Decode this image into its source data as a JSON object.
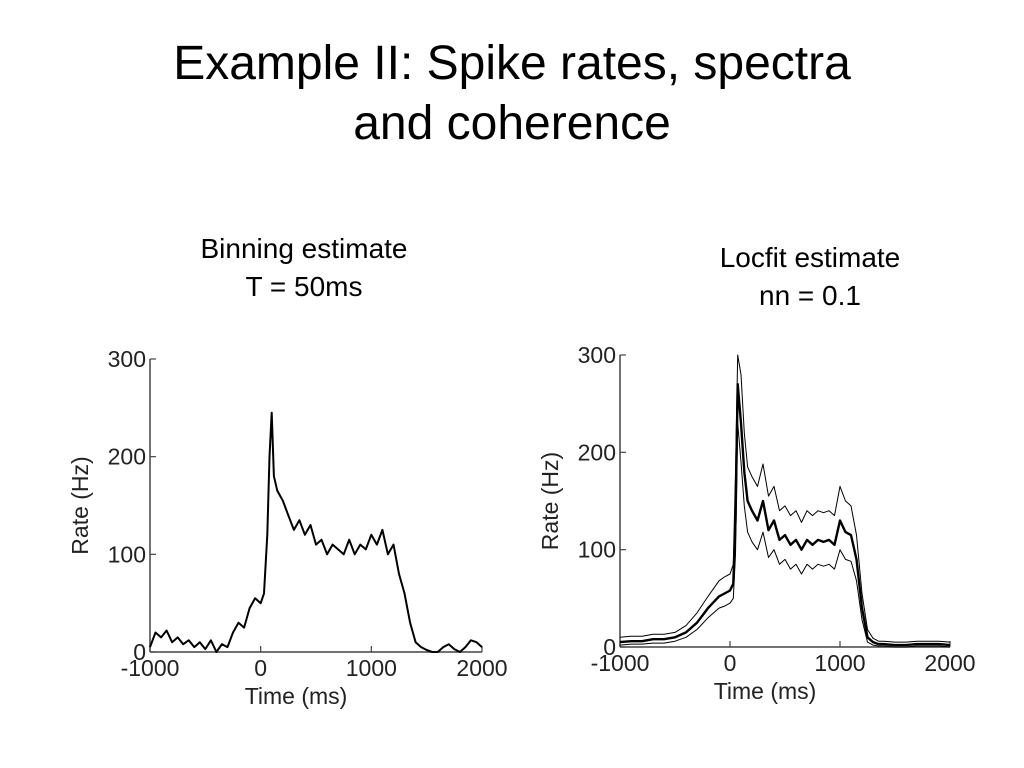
{
  "slide": {
    "title_line1": "Example II:  Spike rates, spectra",
    "title_line2": "and coherence"
  },
  "panels": {
    "left": {
      "title_line1": "Binning estimate",
      "title_line2": "T = 50ms"
    },
    "right": {
      "title_line1": "Locfit estimate",
      "title_line2": "nn = 0.1"
    }
  },
  "chart_data": [
    {
      "type": "line",
      "xlabel": "Time (ms)",
      "ylabel": "Rate (Hz)",
      "xlim": [
        -1000,
        2000
      ],
      "ylim": [
        0,
        300
      ],
      "xticks": [
        "-1000",
        "0",
        "1000",
        "2000"
      ],
      "yticks": [
        "0",
        "100",
        "200",
        "300"
      ],
      "color": "#000000",
      "series": [
        {
          "x": [
            -1000,
            -950,
            -900,
            -850,
            -800,
            -750,
            -700,
            -650,
            -600,
            -550,
            -500,
            -450,
            -400,
            -350,
            -300,
            -250,
            -200,
            -150,
            -100,
            -50,
            0,
            30,
            60,
            80,
            100,
            120,
            150,
            200,
            250,
            300,
            350,
            400,
            450,
            500,
            550,
            600,
            650,
            700,
            750,
            800,
            850,
            900,
            950,
            1000,
            1050,
            1100,
            1150,
            1200,
            1250,
            1300,
            1350,
            1400,
            1450,
            1500,
            1550,
            1600,
            1650,
            1700,
            1750,
            1800,
            1850,
            1900,
            1950,
            2000
          ],
          "y": [
            5,
            20,
            15,
            22,
            10,
            15,
            8,
            12,
            5,
            10,
            3,
            12,
            0,
            8,
            5,
            20,
            30,
            25,
            45,
            55,
            50,
            60,
            120,
            200,
            245,
            180,
            165,
            155,
            140,
            125,
            135,
            120,
            130,
            110,
            115,
            100,
            110,
            105,
            100,
            115,
            100,
            110,
            105,
            120,
            110,
            125,
            100,
            110,
            80,
            60,
            30,
            10,
            5,
            2,
            0,
            0,
            5,
            8,
            3,
            0,
            5,
            12,
            10,
            5
          ]
        }
      ]
    },
    {
      "type": "line",
      "xlabel": "Time (ms)",
      "ylabel": "Rate (Hz)",
      "xlim": [
        -1000,
        2000
      ],
      "ylim": [
        0,
        300
      ],
      "xticks": [
        "-1000",
        "0",
        "1000",
        "2000"
      ],
      "yticks": [
        "0",
        "100",
        "200",
        "300"
      ],
      "color": "#000000",
      "series": [
        {
          "x": [
            -1000,
            -900,
            -800,
            -700,
            -600,
            -500,
            -400,
            -300,
            -200,
            -100,
            -50,
            0,
            30,
            50,
            70,
            100,
            130,
            160,
            200,
            250,
            300,
            350,
            400,
            450,
            500,
            550,
            600,
            650,
            700,
            750,
            800,
            850,
            900,
            950,
            1000,
            1050,
            1100,
            1150,
            1200,
            1250,
            1300,
            1350,
            1400,
            1500,
            1600,
            1700,
            1800,
            1900,
            2000
          ],
          "y": [
            5,
            6,
            6,
            8,
            8,
            10,
            15,
            25,
            40,
            52,
            55,
            58,
            65,
            130,
            270,
            230,
            180,
            150,
            140,
            130,
            150,
            120,
            130,
            110,
            115,
            105,
            110,
            100,
            110,
            105,
            110,
            108,
            110,
            105,
            130,
            118,
            115,
            90,
            40,
            10,
            5,
            3,
            3,
            2,
            2,
            3,
            3,
            3,
            2
          ]
        },
        {
          "x": [
            -1000,
            -900,
            -800,
            -700,
            -600,
            -500,
            -400,
            -300,
            -200,
            -100,
            -50,
            0,
            30,
            50,
            70,
            100,
            130,
            160,
            200,
            250,
            300,
            350,
            400,
            450,
            500,
            550,
            600,
            650,
            700,
            750,
            800,
            850,
            900,
            950,
            1000,
            1050,
            1100,
            1150,
            1200,
            1250,
            1300,
            1350,
            1400,
            1500,
            1600,
            1700,
            1800,
            1900,
            2000
          ],
          "y": [
            10,
            11,
            11,
            13,
            13,
            15,
            22,
            35,
            52,
            68,
            72,
            75,
            85,
            180,
            300,
            280,
            220,
            185,
            175,
            165,
            188,
            155,
            165,
            140,
            145,
            135,
            140,
            128,
            140,
            135,
            140,
            138,
            140,
            135,
            165,
            150,
            145,
            115,
            55,
            18,
            9,
            6,
            6,
            5,
            5,
            6,
            6,
            6,
            5
          ]
        },
        {
          "x": [
            -1000,
            -900,
            -800,
            -700,
            -600,
            -500,
            -400,
            -300,
            -200,
            -100,
            -50,
            0,
            30,
            50,
            70,
            100,
            130,
            160,
            200,
            250,
            300,
            350,
            400,
            450,
            500,
            550,
            600,
            650,
            700,
            750,
            800,
            850,
            900,
            950,
            1000,
            1050,
            1100,
            1150,
            1200,
            1250,
            1300,
            1350,
            1400,
            1500,
            1600,
            1700,
            1800,
            1900,
            2000
          ],
          "y": [
            2,
            3,
            3,
            4,
            4,
            6,
            10,
            18,
            30,
            40,
            42,
            45,
            50,
            95,
            230,
            190,
            145,
            118,
            108,
            100,
            118,
            92,
            100,
            85,
            90,
            80,
            85,
            75,
            85,
            80,
            85,
            83,
            85,
            80,
            100,
            90,
            88,
            68,
            28,
            5,
            2,
            1,
            1,
            0,
            0,
            1,
            1,
            1,
            0
          ]
        }
      ]
    }
  ]
}
